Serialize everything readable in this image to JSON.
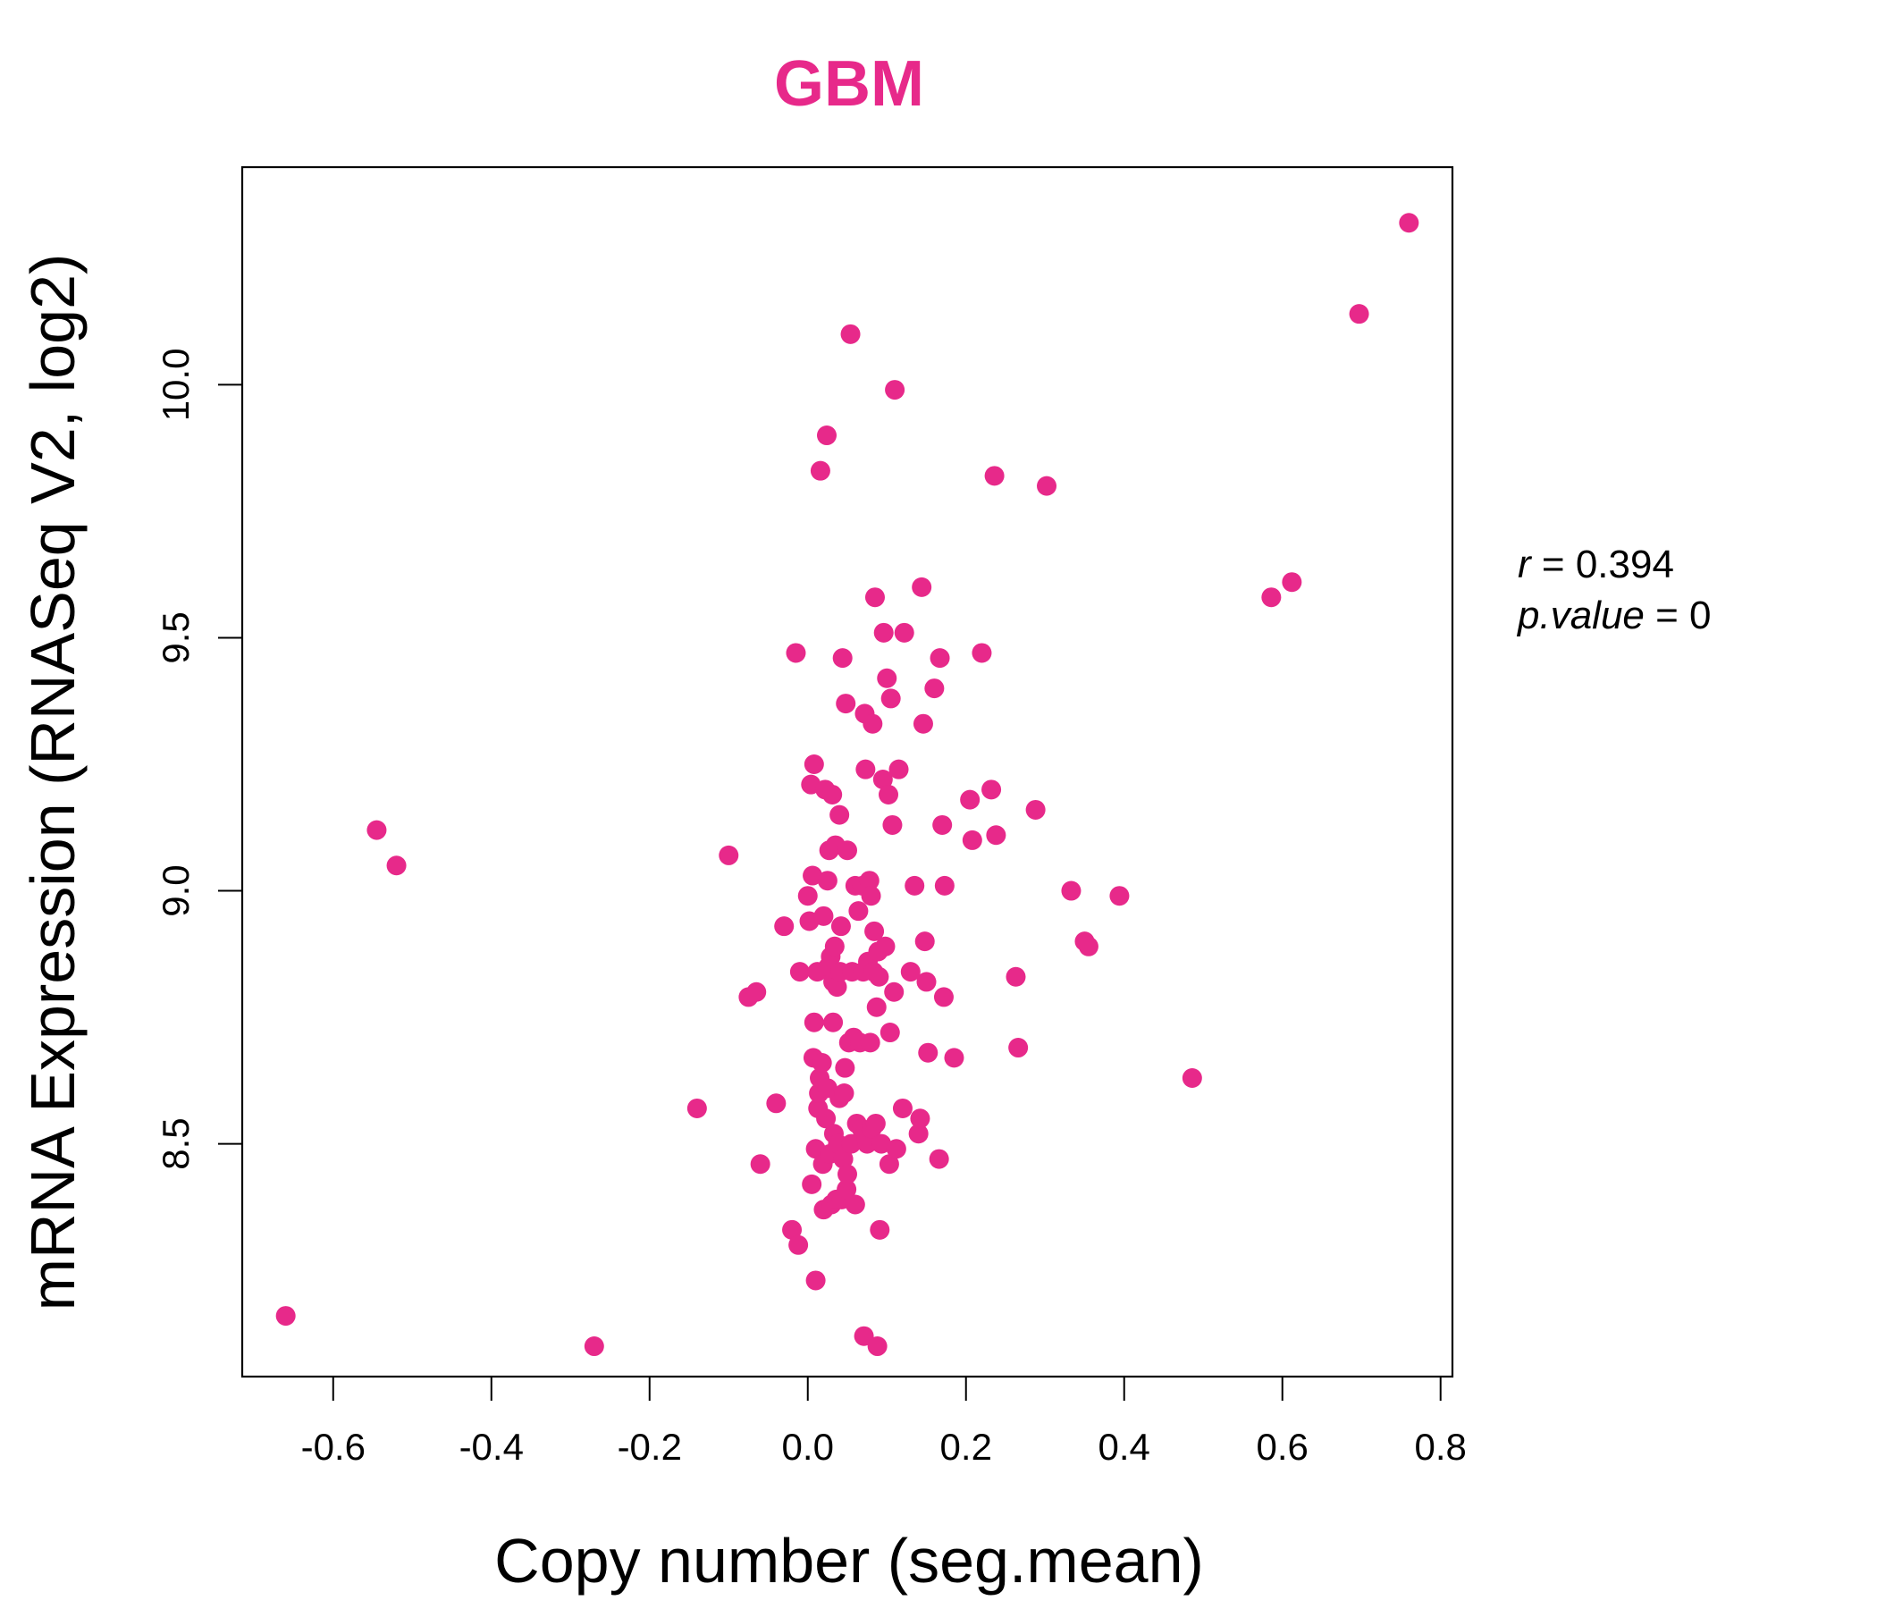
{
  "chart_data": {
    "type": "scatter",
    "title": "GBM",
    "xlabel": "Copy number (seg.mean)",
    "ylabel": "mRNA Expression (RNASeq V2, log2)",
    "xlim": [
      -0.715,
      0.815
    ],
    "ylim": [
      8.04,
      10.43
    ],
    "x_ticks": [
      -0.6,
      -0.4,
      -0.2,
      0.0,
      0.2,
      0.4,
      0.6,
      0.8
    ],
    "x_tick_labels": [
      "-0.6",
      "-0.4",
      "-0.2",
      "0.0",
      "0.2",
      "0.4",
      "0.6",
      "0.8"
    ],
    "y_ticks": [
      8.5,
      9.0,
      9.5,
      10.0
    ],
    "y_tick_labels": [
      "8.5",
      "9.0",
      "9.5",
      "10.0"
    ],
    "grid": false,
    "point_color": "#E7298A",
    "title_color": "#E7298A",
    "annotations": {
      "r_symbol": "r",
      "r_value": "0.394",
      "p_symbol": "p.value",
      "p_value": "0"
    },
    "points": [
      {
        "x": -0.66,
        "y": 8.16
      },
      {
        "x": -0.27,
        "y": 8.1
      },
      {
        "x": -0.545,
        "y": 9.12
      },
      {
        "x": -0.52,
        "y": 9.05
      },
      {
        "x": -0.1,
        "y": 9.07
      },
      {
        "x": -0.14,
        "y": 8.57
      },
      {
        "x": -0.075,
        "y": 8.79
      },
      {
        "x": -0.065,
        "y": 8.8
      },
      {
        "x": -0.06,
        "y": 8.46
      },
      {
        "x": -0.04,
        "y": 8.58
      },
      {
        "x": -0.03,
        "y": 8.93
      },
      {
        "x": -0.02,
        "y": 8.33
      },
      {
        "x": -0.015,
        "y": 9.47
      },
      {
        "x": -0.012,
        "y": 8.3
      },
      {
        "x": -0.01,
        "y": 8.84
      },
      {
        "x": 0.0,
        "y": 8.99
      },
      {
        "x": 0.002,
        "y": 8.94
      },
      {
        "x": 0.004,
        "y": 9.21
      },
      {
        "x": 0.005,
        "y": 8.42
      },
      {
        "x": 0.006,
        "y": 9.03
      },
      {
        "x": 0.007,
        "y": 8.67
      },
      {
        "x": 0.008,
        "y": 8.74
      },
      {
        "x": 0.008,
        "y": 9.25
      },
      {
        "x": 0.01,
        "y": 8.49
      },
      {
        "x": 0.01,
        "y": 8.23
      },
      {
        "x": 0.012,
        "y": 8.84
      },
      {
        "x": 0.013,
        "y": 8.57
      },
      {
        "x": 0.014,
        "y": 8.6
      },
      {
        "x": 0.015,
        "y": 8.63
      },
      {
        "x": 0.016,
        "y": 9.83
      },
      {
        "x": 0.018,
        "y": 8.66
      },
      {
        "x": 0.019,
        "y": 8.46
      },
      {
        "x": 0.02,
        "y": 8.37
      },
      {
        "x": 0.02,
        "y": 8.95
      },
      {
        "x": 0.022,
        "y": 9.2
      },
      {
        "x": 0.023,
        "y": 8.55
      },
      {
        "x": 0.024,
        "y": 9.9
      },
      {
        "x": 0.025,
        "y": 9.02
      },
      {
        "x": 0.025,
        "y": 8.61
      },
      {
        "x": 0.026,
        "y": 8.85
      },
      {
        "x": 0.027,
        "y": 9.08
      },
      {
        "x": 0.028,
        "y": 8.48
      },
      {
        "x": 0.029,
        "y": 8.87
      },
      {
        "x": 0.03,
        "y": 8.38
      },
      {
        "x": 0.031,
        "y": 9.19
      },
      {
        "x": 0.032,
        "y": 8.82
      },
      {
        "x": 0.032,
        "y": 8.74
      },
      {
        "x": 0.033,
        "y": 8.52
      },
      {
        "x": 0.034,
        "y": 8.89
      },
      {
        "x": 0.035,
        "y": 9.09
      },
      {
        "x": 0.036,
        "y": 8.39
      },
      {
        "x": 0.037,
        "y": 8.81
      },
      {
        "x": 0.038,
        "y": 8.5
      },
      {
        "x": 0.04,
        "y": 9.15
      },
      {
        "x": 0.04,
        "y": 8.59
      },
      {
        "x": 0.041,
        "y": 8.84
      },
      {
        "x": 0.042,
        "y": 8.93
      },
      {
        "x": 0.043,
        "y": 8.39
      },
      {
        "x": 0.044,
        "y": 9.46
      },
      {
        "x": 0.045,
        "y": 8.47
      },
      {
        "x": 0.046,
        "y": 8.6
      },
      {
        "x": 0.047,
        "y": 8.65
      },
      {
        "x": 0.048,
        "y": 9.37
      },
      {
        "x": 0.049,
        "y": 8.41
      },
      {
        "x": 0.05,
        "y": 8.44
      },
      {
        "x": 0.05,
        "y": 9.08
      },
      {
        "x": 0.052,
        "y": 8.7
      },
      {
        "x": 0.054,
        "y": 10.1
      },
      {
        "x": 0.055,
        "y": 8.5
      },
      {
        "x": 0.056,
        "y": 8.84
      },
      {
        "x": 0.058,
        "y": 8.71
      },
      {
        "x": 0.06,
        "y": 9.01
      },
      {
        "x": 0.06,
        "y": 8.38
      },
      {
        "x": 0.062,
        "y": 8.54
      },
      {
        "x": 0.064,
        "y": 8.96
      },
      {
        "x": 0.066,
        "y": 8.7
      },
      {
        "x": 0.068,
        "y": 8.53
      },
      {
        "x": 0.069,
        "y": 9.01
      },
      {
        "x": 0.07,
        "y": 8.84
      },
      {
        "x": 0.071,
        "y": 8.12
      },
      {
        "x": 0.072,
        "y": 9.35
      },
      {
        "x": 0.073,
        "y": 9.24
      },
      {
        "x": 0.074,
        "y": 8.51
      },
      {
        "x": 0.075,
        "y": 8.5
      },
      {
        "x": 0.076,
        "y": 8.86
      },
      {
        "x": 0.078,
        "y": 9.02
      },
      {
        "x": 0.079,
        "y": 8.7
      },
      {
        "x": 0.08,
        "y": 8.99
      },
      {
        "x": 0.081,
        "y": 8.53
      },
      {
        "x": 0.082,
        "y": 9.33
      },
      {
        "x": 0.083,
        "y": 8.84
      },
      {
        "x": 0.084,
        "y": 8.92
      },
      {
        "x": 0.085,
        "y": 9.58
      },
      {
        "x": 0.086,
        "y": 8.54
      },
      {
        "x": 0.087,
        "y": 8.77
      },
      {
        "x": 0.088,
        "y": 8.1
      },
      {
        "x": 0.089,
        "y": 8.88
      },
      {
        "x": 0.09,
        "y": 8.83
      },
      {
        "x": 0.091,
        "y": 8.33
      },
      {
        "x": 0.093,
        "y": 8.5
      },
      {
        "x": 0.095,
        "y": 9.22
      },
      {
        "x": 0.096,
        "y": 9.51
      },
      {
        "x": 0.098,
        "y": 8.89
      },
      {
        "x": 0.1,
        "y": 9.42
      },
      {
        "x": 0.102,
        "y": 9.19
      },
      {
        "x": 0.103,
        "y": 8.46
      },
      {
        "x": 0.104,
        "y": 8.72
      },
      {
        "x": 0.105,
        "y": 9.38
      },
      {
        "x": 0.107,
        "y": 9.13
      },
      {
        "x": 0.109,
        "y": 8.8
      },
      {
        "x": 0.11,
        "y": 9.99
      },
      {
        "x": 0.112,
        "y": 8.49
      },
      {
        "x": 0.115,
        "y": 9.24
      },
      {
        "x": 0.12,
        "y": 8.57
      },
      {
        "x": 0.122,
        "y": 9.51
      },
      {
        "x": 0.13,
        "y": 8.84
      },
      {
        "x": 0.135,
        "y": 9.01
      },
      {
        "x": 0.14,
        "y": 8.52
      },
      {
        "x": 0.142,
        "y": 8.55
      },
      {
        "x": 0.144,
        "y": 9.6
      },
      {
        "x": 0.146,
        "y": 9.33
      },
      {
        "x": 0.148,
        "y": 8.9
      },
      {
        "x": 0.15,
        "y": 8.82
      },
      {
        "x": 0.152,
        "y": 8.68
      },
      {
        "x": 0.16,
        "y": 9.4
      },
      {
        "x": 0.166,
        "y": 8.47
      },
      {
        "x": 0.167,
        "y": 9.46
      },
      {
        "x": 0.17,
        "y": 9.13
      },
      {
        "x": 0.172,
        "y": 8.79
      },
      {
        "x": 0.173,
        "y": 9.01
      },
      {
        "x": 0.185,
        "y": 8.67
      },
      {
        "x": 0.205,
        "y": 9.18
      },
      {
        "x": 0.208,
        "y": 9.1
      },
      {
        "x": 0.22,
        "y": 9.47
      },
      {
        "x": 0.232,
        "y": 9.2
      },
      {
        "x": 0.236,
        "y": 9.82
      },
      {
        "x": 0.238,
        "y": 9.11
      },
      {
        "x": 0.263,
        "y": 8.83
      },
      {
        "x": 0.266,
        "y": 8.69
      },
      {
        "x": 0.288,
        "y": 9.16
      },
      {
        "x": 0.302,
        "y": 9.8
      },
      {
        "x": 0.333,
        "y": 9.0
      },
      {
        "x": 0.35,
        "y": 8.9
      },
      {
        "x": 0.355,
        "y": 8.89
      },
      {
        "x": 0.394,
        "y": 8.99
      },
      {
        "x": 0.486,
        "y": 8.63
      },
      {
        "x": 0.586,
        "y": 9.58
      },
      {
        "x": 0.612,
        "y": 9.61
      },
      {
        "x": 0.697,
        "y": 10.14
      },
      {
        "x": 0.76,
        "y": 10.32
      }
    ]
  }
}
